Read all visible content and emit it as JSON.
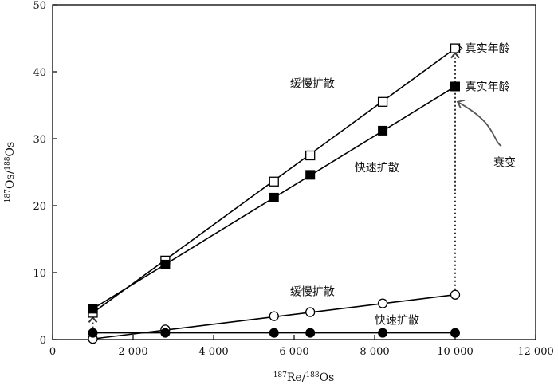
{
  "chart_data": {
    "type": "scatter",
    "xlabel": "187Re/188Os",
    "ylabel": "187Os/188Os",
    "xlim": [
      0,
      12000
    ],
    "ylim": [
      0,
      50
    ],
    "xticks": [
      0,
      2000,
      4000,
      6000,
      8000,
      10000,
      12000
    ],
    "xtick_labels": [
      "0",
      "2 000",
      "4 000",
      "6 000",
      "8 000",
      "10 000",
      "12 000"
    ],
    "yticks": [
      0,
      10,
      20,
      30,
      40,
      50
    ],
    "ytick_labels": [
      "0",
      "10",
      "20",
      "30",
      "40",
      "50"
    ],
    "grid": false,
    "series": [
      {
        "marker": "open-square",
        "points": [
          [
            1000,
            4.0
          ],
          [
            2800,
            11.8
          ],
          [
            5500,
            23.6
          ],
          [
            6400,
            27.5
          ],
          [
            8200,
            35.5
          ],
          [
            10000,
            43.5
          ]
        ],
        "fit_line": [
          [
            1000,
            4.0
          ],
          [
            10000,
            43.5
          ]
        ]
      },
      {
        "marker": "filled-square",
        "points": [
          [
            1000,
            4.6
          ],
          [
            2800,
            11.2
          ],
          [
            5500,
            21.2
          ],
          [
            6400,
            24.6
          ],
          [
            8200,
            31.2
          ],
          [
            10000,
            37.8
          ]
        ],
        "fit_line": [
          [
            1000,
            4.6
          ],
          [
            10000,
            37.8
          ]
        ]
      },
      {
        "marker": "open-circle",
        "points": [
          [
            1000,
            0.1
          ],
          [
            2800,
            1.5
          ],
          [
            5500,
            3.5
          ],
          [
            6400,
            4.1
          ],
          [
            8200,
            5.4
          ],
          [
            10000,
            6.7
          ]
        ],
        "fit_line": [
          [
            1000,
            0.1
          ],
          [
            10000,
            6.7
          ]
        ]
      },
      {
        "marker": "filled-circle",
        "points": [
          [
            1000,
            1.0
          ],
          [
            2800,
            1.0
          ],
          [
            5500,
            1.0
          ],
          [
            6400,
            1.0
          ],
          [
            8200,
            1.0
          ],
          [
            10000,
            1.0
          ]
        ],
        "fit_line": [
          [
            1000,
            1.0
          ],
          [
            10000,
            1.0
          ]
        ]
      }
    ],
    "dotted_arrows": [
      {
        "from": [
          10000,
          6.7
        ],
        "to": [
          10000,
          43.5
        ]
      },
      {
        "from": [
          1000,
          1.0
        ],
        "to": [
          1000,
          4.0
        ]
      }
    ],
    "annotations": [
      {
        "text": "真实年龄",
        "at": [
          10250,
          43.5
        ]
      },
      {
        "text": "真实年龄",
        "at": [
          10250,
          37.8
        ]
      },
      {
        "text": "缓慢扩散",
        "at": [
          5900,
          38.3
        ]
      },
      {
        "text": "快速扩散",
        "at": [
          7500,
          25.7
        ]
      },
      {
        "text": "衰变",
        "at": [
          10950,
          26.5
        ]
      },
      {
        "text": "缓慢扩散",
        "at": [
          5900,
          7.2
        ]
      },
      {
        "text": "快速扩散",
        "at": [
          8000,
          2.9
        ]
      }
    ]
  }
}
